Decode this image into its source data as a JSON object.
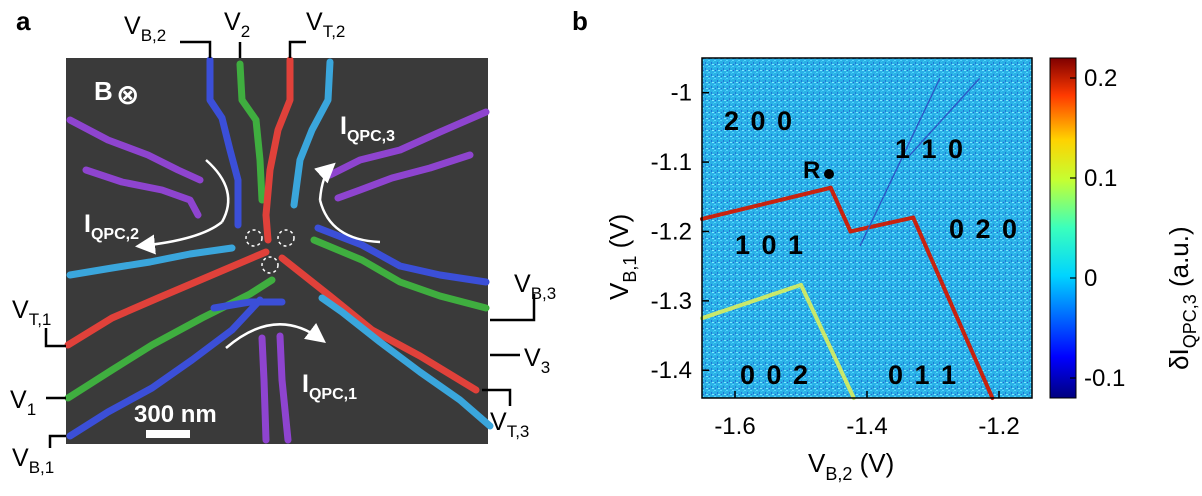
{
  "panel_a": {
    "letter": "a",
    "field_label": "B",
    "field_symbol": "⊗",
    "terminals": {
      "vb2": {
        "main": "V",
        "sub": "B,2"
      },
      "v2": {
        "main": "V",
        "sub": "2"
      },
      "vt2": {
        "main": "V",
        "sub": "T,2"
      },
      "vb3": {
        "main": "V",
        "sub": "B,3"
      },
      "v3": {
        "main": "V",
        "sub": "3"
      },
      "vt3": {
        "main": "V",
        "sub": "T,3"
      },
      "vt1": {
        "main": "V",
        "sub": "T,1"
      },
      "v1": {
        "main": "V",
        "sub": "1"
      },
      "vb1": {
        "main": "V",
        "sub": "B,1"
      }
    },
    "currents": {
      "qpc1": {
        "main": "I",
        "sub": "QPC,1"
      },
      "qpc2": {
        "main": "I",
        "sub": "QPC,2"
      },
      "qpc3": {
        "main": "I",
        "sub": "QPC,3"
      }
    },
    "scalebar": "300 nm",
    "colors": {
      "blue": "#3b4fd8",
      "green": "#3fae3f",
      "red": "#e0413a",
      "cyan": "#3aa6dc",
      "purple": "#8e44cf",
      "background": "#3a3a3a"
    }
  },
  "panel_b": {
    "letter": "b",
    "marker_label": "R",
    "occupations": [
      "2 0 0",
      "1 1 0",
      "1 0 1",
      "0 2 0",
      "0 1 1",
      "0 0 2"
    ]
  },
  "chart_data": {
    "type": "heatmap",
    "xlabel": {
      "main": "V",
      "sub": "B,2",
      "unit": " (V)"
    },
    "ylabel": {
      "main": "V",
      "sub": "B,1",
      "unit": " (V)"
    },
    "colorbar_label": {
      "prefix": "δI",
      "sub": "QPC,3",
      "unit": " (a.u.)"
    },
    "xlim": [
      -1.65,
      -1.15
    ],
    "ylim": [
      -1.44,
      -0.95
    ],
    "x_ticks": [
      -1.6,
      -1.4,
      -1.2
    ],
    "x_tick_labels": [
      "-1.6",
      "-1.4",
      "-1.2"
    ],
    "y_ticks": [
      -1.0,
      -1.1,
      -1.2,
      -1.3,
      -1.4
    ],
    "y_tick_labels": [
      "-1",
      "-1.1",
      "-1.2",
      "-1.3",
      "-1.4"
    ],
    "colorbar_ticks": [
      0.2,
      0.1,
      0,
      -0.1
    ],
    "colorbar_tick_labels": [
      "0.2",
      "0.1",
      "0",
      "-0.1"
    ],
    "colorbar_range": [
      -0.12,
      0.22
    ],
    "colormap": "jet",
    "lines": [
      {
        "kind": "strong",
        "points": [
          [
            -1.65,
            -1.182
          ],
          [
            -1.455,
            -1.137
          ]
        ]
      },
      {
        "kind": "strong",
        "points": [
          [
            -1.455,
            -1.137
          ],
          [
            -1.425,
            -1.2
          ]
        ]
      },
      {
        "kind": "strong",
        "points": [
          [
            -1.425,
            -1.2
          ],
          [
            -1.33,
            -1.18
          ]
        ]
      },
      {
        "kind": "strong",
        "points": [
          [
            -1.33,
            -1.18
          ],
          [
            -1.21,
            -1.44
          ]
        ]
      },
      {
        "kind": "faint",
        "points": [
          [
            -1.65,
            -1.325
          ],
          [
            -1.5,
            -1.277
          ]
        ]
      },
      {
        "kind": "faint",
        "points": [
          [
            -1.5,
            -1.277
          ],
          [
            -1.42,
            -1.44
          ]
        ]
      },
      {
        "kind": "weak",
        "points": [
          [
            -1.41,
            -1.22
          ],
          [
            -1.29,
            -0.98
          ]
        ]
      },
      {
        "kind": "weak",
        "points": [
          [
            -1.335,
            -1.09
          ],
          [
            -1.23,
            -0.98
          ]
        ]
      }
    ]
  }
}
